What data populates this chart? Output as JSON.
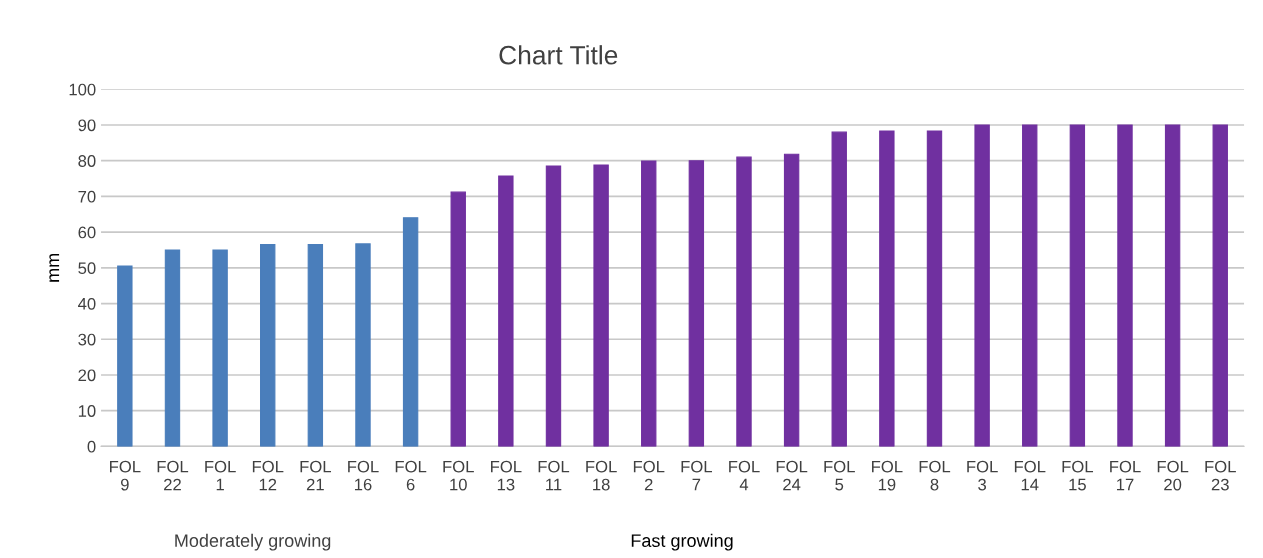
{
  "chart_data": {
    "type": "bar",
    "title": "Chart Title",
    "ylabel": "mm",
    "categories": [
      "FOL 9",
      "FOL 22",
      "FOL 1",
      "FOL 12",
      "FOL 21",
      "FOL 16",
      "FOL 6",
      "FOL 10",
      "FOL 13",
      "FOL 11",
      "FOL 18",
      "FOL 2",
      "FOL 7",
      "FOL 4",
      "FOL 24",
      "FOL 5",
      "FOL 19",
      "FOL 8",
      "FOL 3",
      "FOL 14",
      "FOL 15",
      "FOL 17",
      "FOL 20",
      "FOL 23"
    ],
    "values": [
      50.5,
      55,
      55,
      56.5,
      56.5,
      56.7,
      64,
      71.2,
      75.7,
      78.5,
      78.8,
      79.9,
      80,
      81,
      81.8,
      88,
      88.3,
      88.3,
      90,
      90,
      90,
      90,
      90,
      90
    ],
    "colors": [
      "#4a7ebb",
      "#4a7ebb",
      "#4a7ebb",
      "#4a7ebb",
      "#4a7ebb",
      "#4a7ebb",
      "#4a7ebb",
      "#7030a0",
      "#7030a0",
      "#7030a0",
      "#7030a0",
      "#7030a0",
      "#7030a0",
      "#7030a0",
      "#7030a0",
      "#7030a0",
      "#7030a0",
      "#7030a0",
      "#7030a0",
      "#7030a0",
      "#7030a0",
      "#7030a0",
      "#7030a0",
      "#7030a0"
    ],
    "ylim": [
      0,
      100
    ],
    "yticks": [
      0,
      10,
      20,
      30,
      40,
      50,
      60,
      70,
      80,
      90,
      100
    ],
    "grid": "y",
    "legend": false,
    "annotations": [
      "Moderately growing",
      "Fast growing"
    ]
  }
}
